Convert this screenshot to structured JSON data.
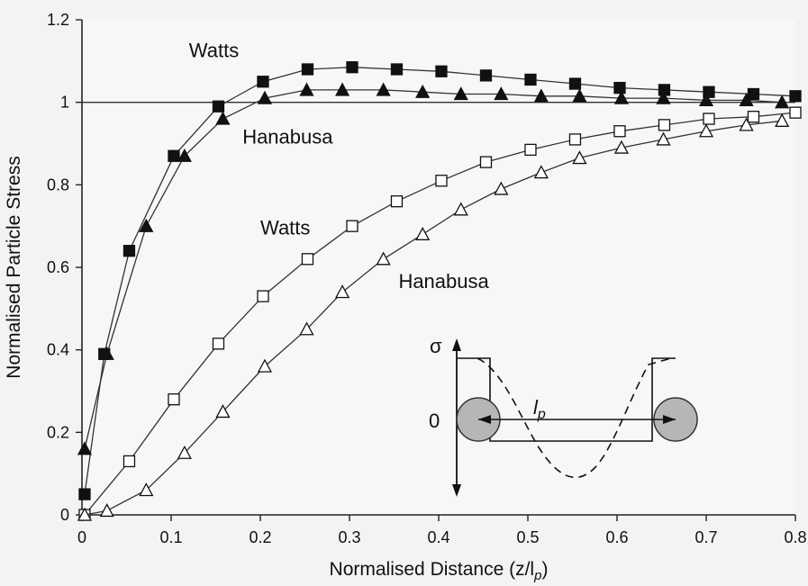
{
  "chart_data": {
    "type": "scatter",
    "xlabel": "Normalised Distance (z/l",
    "xlabel_sub": "p",
    "xlabel_close": ")",
    "ylabel": "Normalised Particle Stress",
    "xlim": [
      0,
      0.8
    ],
    "ylim": [
      0,
      1.2
    ],
    "x_ticks": [
      "0",
      "0.1",
      "0.2",
      "0.3",
      "0.4",
      "0.5",
      "0.6",
      "0.7",
      "0.8"
    ],
    "y_ticks": [
      "0",
      "0.2",
      "0.4",
      "0.6",
      "0.8",
      "1",
      "1.2"
    ],
    "reference_line": 1.0,
    "grid": false,
    "series": [
      {
        "marker": "square-filled",
        "x": [
          0.003,
          0.025,
          0.053,
          0.103,
          0.153,
          0.203,
          0.253,
          0.303,
          0.353,
          0.403,
          0.453,
          0.503,
          0.553,
          0.603,
          0.653,
          0.703,
          0.753,
          0.8
        ],
        "y": [
          0.05,
          0.39,
          0.64,
          0.87,
          0.99,
          1.05,
          1.08,
          1.085,
          1.08,
          1.075,
          1.065,
          1.055,
          1.045,
          1.035,
          1.03,
          1.025,
          1.02,
          1.015
        ]
      },
      {
        "marker": "triangle-filled",
        "x": [
          0.003,
          0.028,
          0.072,
          0.115,
          0.158,
          0.205,
          0.252,
          0.292,
          0.338,
          0.382,
          0.425,
          0.47,
          0.515,
          0.558,
          0.605,
          0.652,
          0.7,
          0.745,
          0.785
        ],
        "y": [
          0.16,
          0.39,
          0.7,
          0.87,
          0.96,
          1.01,
          1.03,
          1.03,
          1.03,
          1.025,
          1.02,
          1.02,
          1.015,
          1.015,
          1.01,
          1.01,
          1.005,
          1.005,
          1.0
        ]
      },
      {
        "marker": "square-open",
        "x": [
          0.003,
          0.053,
          0.103,
          0.153,
          0.203,
          0.253,
          0.303,
          0.353,
          0.403,
          0.453,
          0.503,
          0.553,
          0.603,
          0.653,
          0.703,
          0.753,
          0.8
        ],
        "y": [
          0.0,
          0.13,
          0.28,
          0.415,
          0.53,
          0.62,
          0.7,
          0.76,
          0.81,
          0.855,
          0.885,
          0.91,
          0.93,
          0.945,
          0.96,
          0.965,
          0.975
        ]
      },
      {
        "marker": "triangle-open",
        "x": [
          0.003,
          0.028,
          0.072,
          0.115,
          0.158,
          0.205,
          0.252,
          0.292,
          0.338,
          0.382,
          0.425,
          0.47,
          0.515,
          0.558,
          0.605,
          0.652,
          0.7,
          0.745,
          0.785
        ],
        "y": [
          0.0,
          0.01,
          0.06,
          0.15,
          0.25,
          0.36,
          0.45,
          0.54,
          0.62,
          0.68,
          0.74,
          0.79,
          0.83,
          0.865,
          0.89,
          0.91,
          0.93,
          0.945,
          0.955
        ]
      }
    ],
    "annotations": [
      {
        "text": "Watts",
        "x": 0.12,
        "y": 1.11
      },
      {
        "text": "Hanabusa",
        "x": 0.18,
        "y": 0.9
      },
      {
        "text": "Watts",
        "x": 0.2,
        "y": 0.68
      },
      {
        "text": "Hanabusa",
        "x": 0.355,
        "y": 0.55
      }
    ],
    "inset": {
      "sigma_label": "σ",
      "zero_label": "0",
      "length_label": "l",
      "length_label_sub": "p"
    }
  }
}
